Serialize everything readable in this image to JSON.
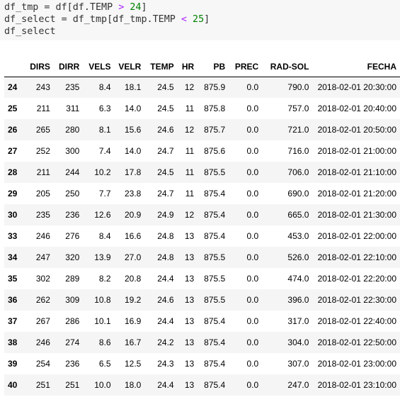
{
  "code_cell": {
    "partial_line": [
      "df_tmp",
      " = ",
      "df[df.TEMP",
      " > ",
      "24]"
    ],
    "line1": {
      "a": "df_tmp = df[df.TEMP ",
      "op": ">",
      "sp": " ",
      "num": "24",
      "b": "]"
    },
    "line2": {
      "a": "df_select = df_tmp[df_tmp.TEMP ",
      "op": "<",
      "sp": " ",
      "num": "25",
      "b": "]"
    },
    "line3": "df_select"
  },
  "table": {
    "columns": [
      "",
      "DIRS",
      "DIRR",
      "VELS",
      "VELR",
      "TEMP",
      "HR",
      "PB",
      "PREC",
      "RAD-SOL",
      "FECHA"
    ],
    "rows": [
      [
        "24",
        "243",
        "235",
        "8.4",
        "18.1",
        "24.5",
        "12",
        "875.9",
        "0.0",
        "790.0",
        "2018-02-01 20:30:00"
      ],
      [
        "25",
        "211",
        "311",
        "6.3",
        "14.0",
        "24.5",
        "11",
        "875.8",
        "0.0",
        "757.0",
        "2018-02-01 20:40:00"
      ],
      [
        "26",
        "265",
        "280",
        "8.1",
        "15.6",
        "24.6",
        "12",
        "875.7",
        "0.0",
        "721.0",
        "2018-02-01 20:50:00"
      ],
      [
        "27",
        "252",
        "300",
        "7.4",
        "14.0",
        "24.7",
        "11",
        "875.6",
        "0.0",
        "716.0",
        "2018-02-01 21:00:00"
      ],
      [
        "28",
        "211",
        "244",
        "10.2",
        "17.8",
        "24.5",
        "11",
        "875.5",
        "0.0",
        "706.0",
        "2018-02-01 21:10:00"
      ],
      [
        "29",
        "205",
        "250",
        "7.7",
        "23.8",
        "24.7",
        "11",
        "875.4",
        "0.0",
        "690.0",
        "2018-02-01 21:20:00"
      ],
      [
        "30",
        "235",
        "236",
        "12.6",
        "20.9",
        "24.9",
        "12",
        "875.4",
        "0.0",
        "665.0",
        "2018-02-01 21:30:00"
      ],
      [
        "33",
        "246",
        "276",
        "8.4",
        "16.6",
        "24.8",
        "13",
        "875.4",
        "0.0",
        "453.0",
        "2018-02-01 22:00:00"
      ],
      [
        "34",
        "247",
        "320",
        "13.9",
        "27.0",
        "24.8",
        "13",
        "875.5",
        "0.0",
        "526.0",
        "2018-02-01 22:10:00"
      ],
      [
        "35",
        "302",
        "289",
        "8.2",
        "20.8",
        "24.4",
        "13",
        "875.5",
        "0.0",
        "474.0",
        "2018-02-01 22:20:00"
      ],
      [
        "36",
        "262",
        "309",
        "10.8",
        "19.2",
        "24.6",
        "13",
        "875.5",
        "0.0",
        "396.0",
        "2018-02-01 22:30:00"
      ],
      [
        "37",
        "267",
        "286",
        "10.1",
        "16.9",
        "24.4",
        "13",
        "875.4",
        "0.0",
        "317.0",
        "2018-02-01 22:40:00"
      ],
      [
        "38",
        "246",
        "274",
        "8.6",
        "16.7",
        "24.2",
        "13",
        "875.4",
        "0.0",
        "304.0",
        "2018-02-01 22:50:00"
      ],
      [
        "39",
        "254",
        "236",
        "6.5",
        "12.5",
        "24.3",
        "13",
        "875.4",
        "0.0",
        "307.0",
        "2018-02-01 23:00:00"
      ],
      [
        "40",
        "251",
        "251",
        "10.0",
        "18.0",
        "24.4",
        "13",
        "875.4",
        "0.0",
        "247.0",
        "2018-02-01 23:10:00"
      ]
    ]
  },
  "colors": {
    "code_background": "#f7f7f7",
    "operator": "#aa22ff",
    "number": "#008000",
    "row_stripe": "#f5f5f5"
  }
}
